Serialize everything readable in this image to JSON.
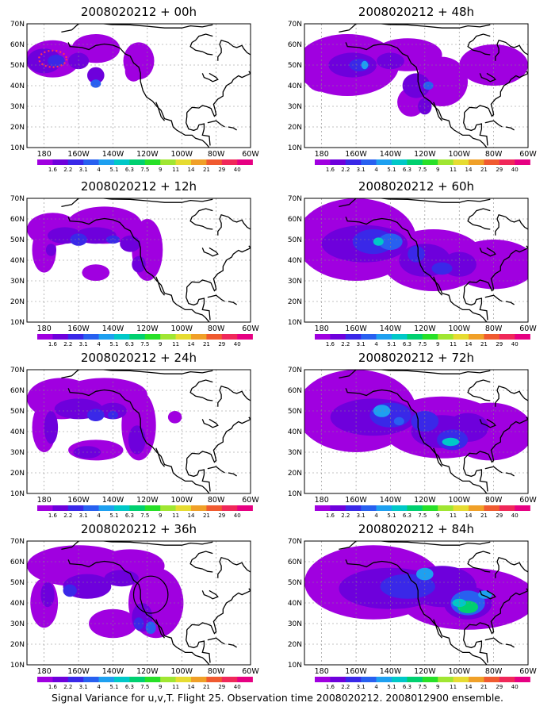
{
  "panels": [
    {
      "id": "p00",
      "title": "2008020212 + 00h"
    },
    {
      "id": "p48",
      "title": "2008020212 + 48h"
    },
    {
      "id": "p12",
      "title": "2008020212 + 12h"
    },
    {
      "id": "p60",
      "title": "2008020212 + 60h"
    },
    {
      "id": "p24",
      "title": "2008020212 + 24h"
    },
    {
      "id": "p72",
      "title": "2008020212 + 72h"
    },
    {
      "id": "p36",
      "title": "2008020212 + 36h"
    },
    {
      "id": "p84",
      "title": "2008020212 + 84h"
    }
  ],
  "lat_labels": [
    "70N",
    "60N",
    "50N",
    "40N",
    "30N",
    "20N",
    "10N"
  ],
  "lon_labels": [
    "180",
    "160W",
    "140W",
    "120W",
    "100W",
    "80W",
    "60W"
  ],
  "colorbar": {
    "labels": [
      "1.6",
      "2.2",
      "3.1",
      "4",
      "5.1",
      "6.3",
      "7.5",
      "9",
      "11",
      "14",
      "21",
      "29",
      "40"
    ],
    "colors": [
      "#a000e0",
      "#6e00dc",
      "#3a28e8",
      "#2860f0",
      "#1ea0f0",
      "#00c8c8",
      "#00d070",
      "#28e028",
      "#a0e632",
      "#e6dc32",
      "#f0a028",
      "#f05a30",
      "#f0285a",
      "#e60082"
    ]
  },
  "caption": "Signal Variance for u,v,T. Flight 25. Observation time 2008020212. 2008012900 ensemble."
}
